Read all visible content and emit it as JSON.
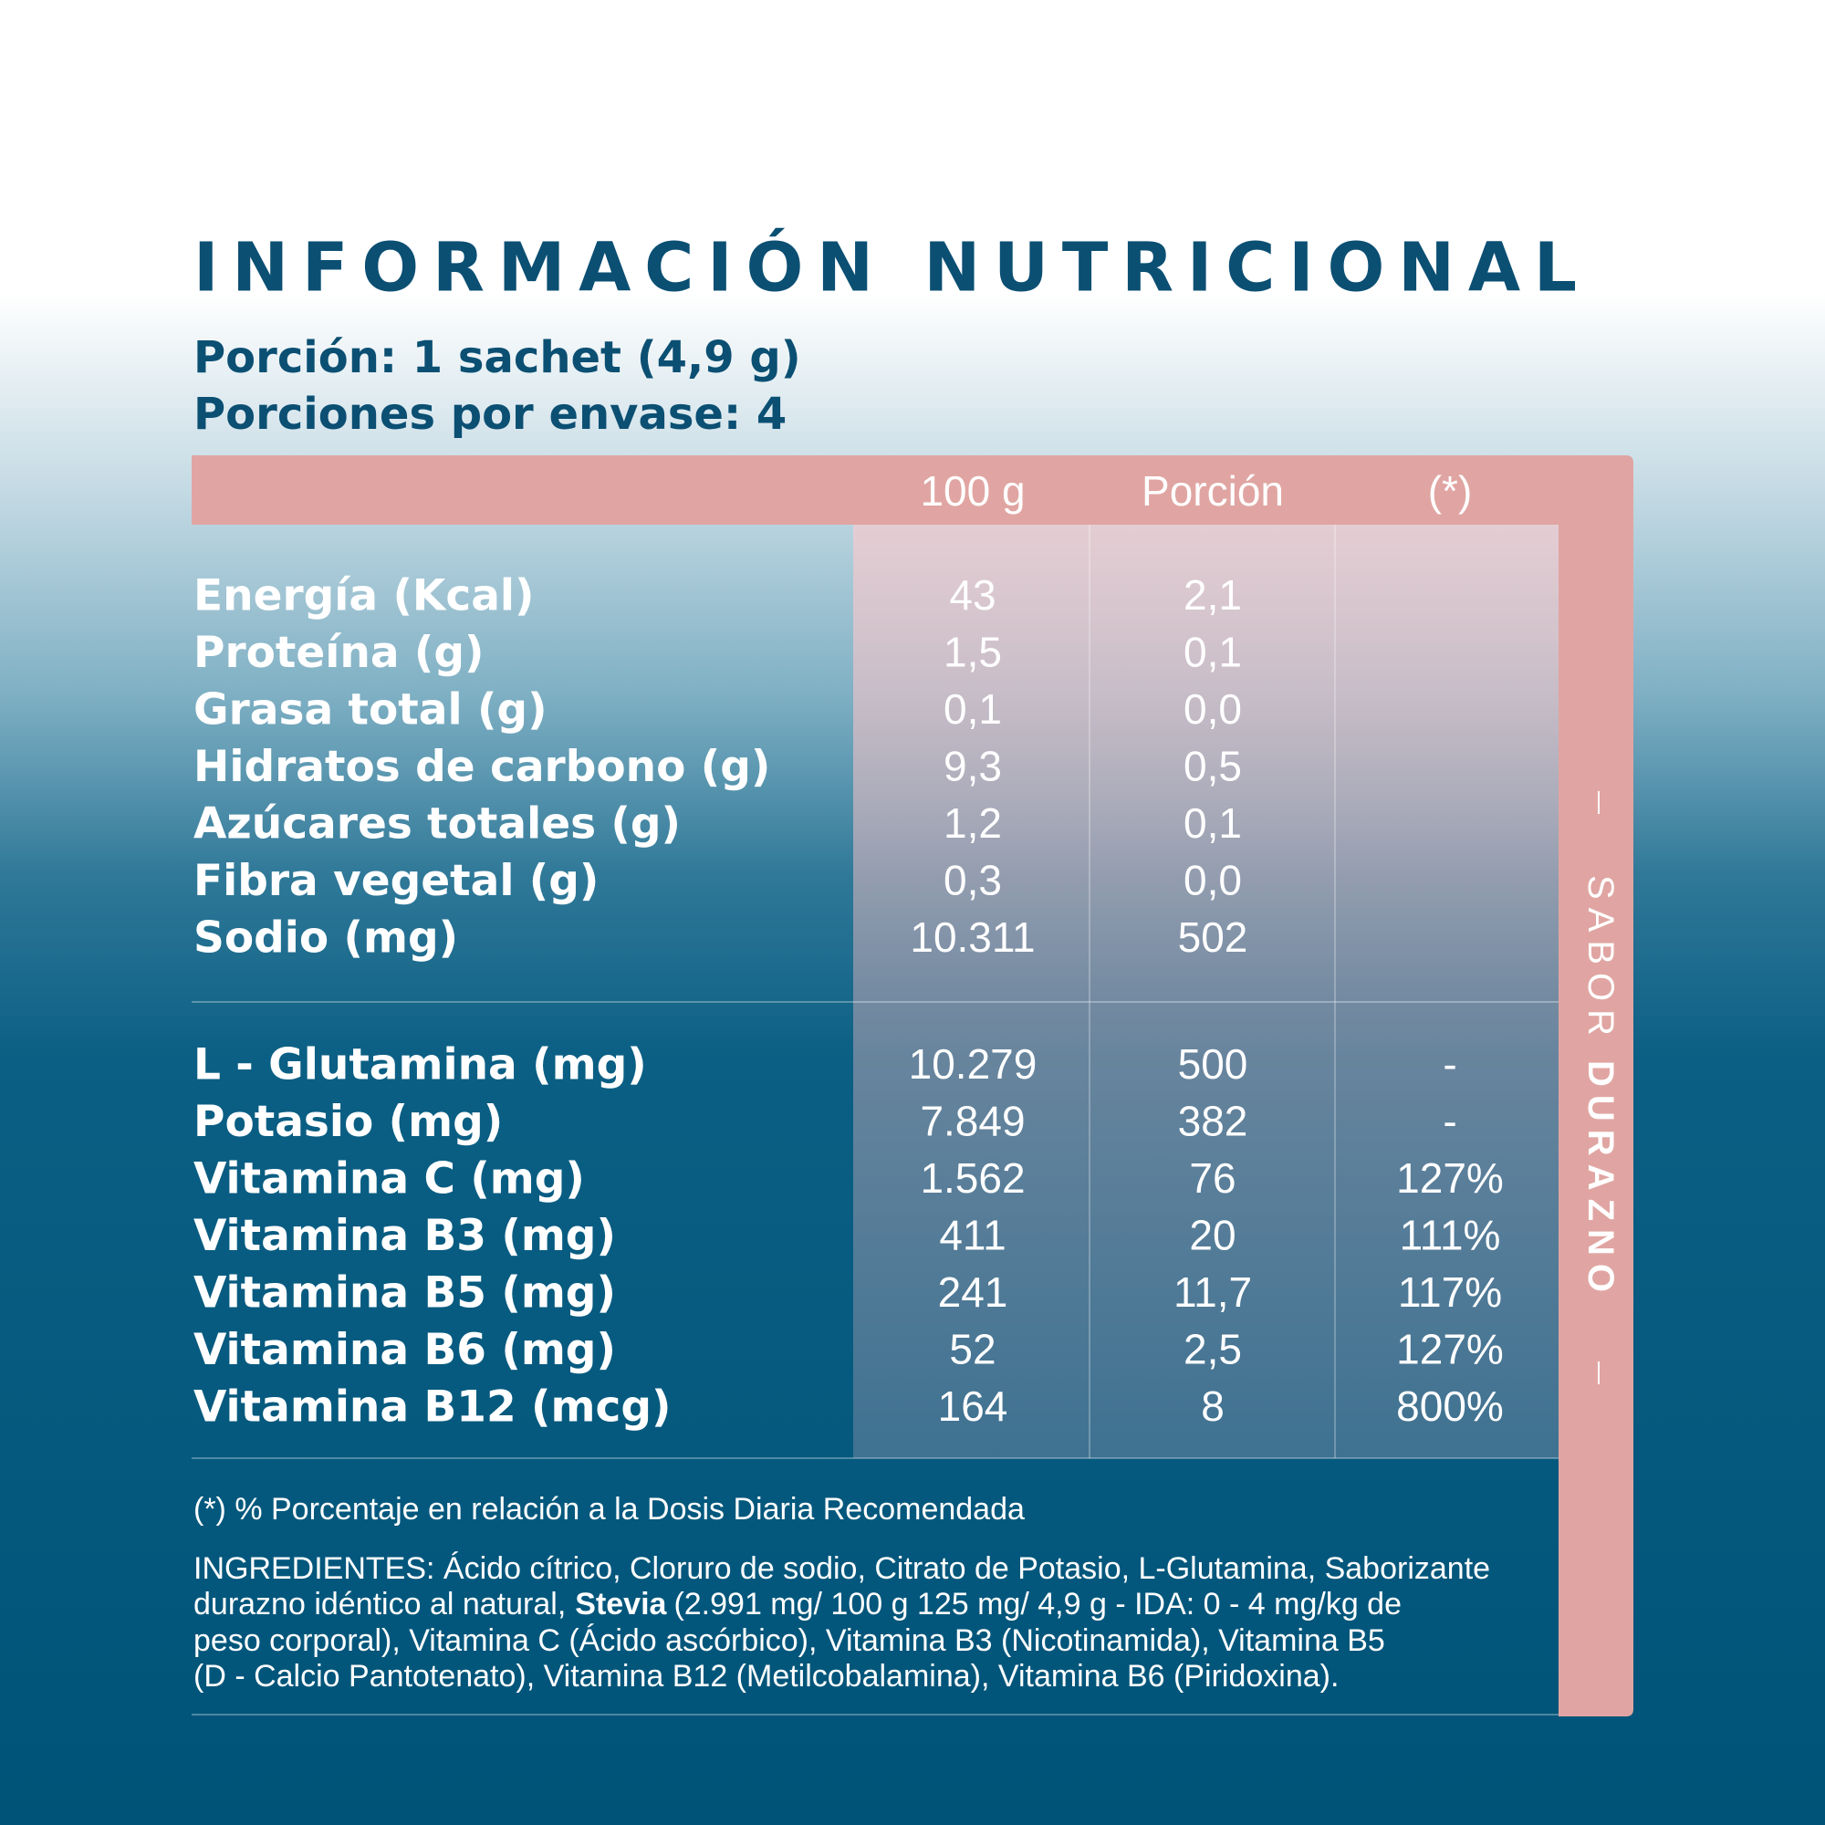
{
  "title": "INFORMACIÓN NUTRICIONAL",
  "serving": [
    "Porción: 1 sachet (4,9 g)",
    "Porciones por envase: 4"
  ],
  "table": {
    "columns": [
      "100 g",
      "Porción",
      "(*)"
    ],
    "groups": [
      [
        [
          "Energía (Kcal)",
          "43",
          "2,1"
        ],
        [
          "Proteína (g)",
          "1,5",
          "0,1"
        ],
        [
          "Grasa total (g)",
          "0,1",
          "0,0"
        ],
        [
          "Hidratos de carbono (g)",
          "9,3",
          "0,5"
        ],
        [
          "Azúcares totales (g)",
          "1,2",
          "0,1"
        ],
        [
          "Fibra vegetal (g)",
          "0,3",
          "0,0"
        ],
        [
          "Sodio (mg)",
          "10.311",
          "502"
        ]
      ],
      [
        [
          "L - Glutamina (mg)",
          "10.279",
          "500",
          "-"
        ],
        [
          "Potasio (mg)",
          "7.849",
          "382",
          "-"
        ],
        [
          "Vitamina C (mg)",
          "1.562",
          "76",
          "127%"
        ],
        [
          "Vitamina B3 (mg)",
          "411",
          "20",
          "111%"
        ],
        [
          "Vitamina B5 (mg)",
          "241",
          "11,7",
          "117%"
        ],
        [
          "Vitamina B6 (mg)",
          "52",
          "2,5",
          "127%"
        ],
        [
          "Vitamina B12 (mcg)",
          "164",
          "8",
          "800%"
        ]
      ]
    ]
  },
  "footnote": "(*) % Porcentaje en relación a la Dosis Diaria Recomendada",
  "ingredients": {
    "line1": "INGREDIENTES: Ácido cítrico, Cloruro de sodio, Citrato de Potasio, L-Glutamina, Saborizante",
    "line2_before": "durazno idéntico al natural,",
    "line2_bold": "Stevia",
    "line2_after": "(2.991 mg/ 100 g 125 mg/ 4,9 g - IDA: 0 - 4 mg/kg de",
    "line3": "peso corporal), Vitamina C (Ácido ascórbico), Vitamina B3 (Nicotinamida), Vitamina B5",
    "line4": "(D - Calcio Pantotenato), Vitamina B12 (Metilcobalamina),  Vitamina B6 (Piridoxina)."
  },
  "flavor_label": "SABOR",
  "flavor": "DURAZNO"
}
